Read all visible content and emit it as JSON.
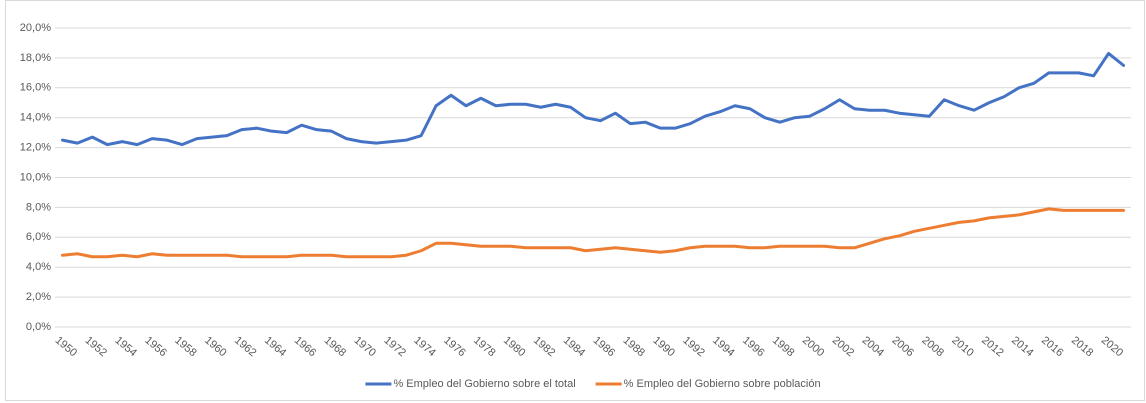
{
  "chart_data": {
    "type": "line",
    "categories": [
      "1950",
      null,
      "1952",
      null,
      "1954",
      null,
      "1956",
      null,
      "1958",
      null,
      "1960",
      null,
      "1962",
      null,
      "1964",
      null,
      "1966",
      null,
      "1968",
      null,
      "1970",
      null,
      "1972",
      null,
      "1974",
      null,
      "1976",
      null,
      "1978",
      null,
      "1980",
      null,
      "1982",
      null,
      "1984",
      null,
      "1986",
      null,
      "1988",
      null,
      "1990",
      null,
      "1992",
      null,
      "1994",
      null,
      "1996",
      null,
      "1998",
      null,
      "2000",
      null,
      "2002",
      null,
      "2004",
      null,
      "2006",
      null,
      "2008",
      null,
      "2010",
      null,
      "2012",
      null,
      "2014",
      null,
      "2016",
      null,
      "2018",
      null,
      "2020",
      null
    ],
    "series": [
      {
        "name": "% Empleo del Gobierno sobre el total",
        "color": "#4472c4",
        "values": [
          12.5,
          12.3,
          12.7,
          12.2,
          12.4,
          12.2,
          12.6,
          12.5,
          12.2,
          12.6,
          12.7,
          12.8,
          13.2,
          13.3,
          13.1,
          13.0,
          13.5,
          13.2,
          13.1,
          12.6,
          12.4,
          12.3,
          12.4,
          12.5,
          12.8,
          14.8,
          15.5,
          14.8,
          15.3,
          14.8,
          14.9,
          14.9,
          14.7,
          14.9,
          14.7,
          14.0,
          13.8,
          14.3,
          13.6,
          13.7,
          13.3,
          13.3,
          13.6,
          14.1,
          14.4,
          14.8,
          14.6,
          14.0,
          13.7,
          14.0,
          14.1,
          14.6,
          15.2,
          14.6,
          14.5,
          14.5,
          14.3,
          14.2,
          14.1,
          15.2,
          14.8,
          14.5,
          15.0,
          15.4,
          16.0,
          16.3,
          17.0,
          17.0,
          17.0,
          16.8,
          18.3,
          17.5
        ]
      },
      {
        "name": "% Empleo del Gobierno sobre población",
        "color": "#ed7d31",
        "values": [
          4.8,
          4.9,
          4.7,
          4.7,
          4.8,
          4.7,
          4.9,
          4.8,
          4.8,
          4.8,
          4.8,
          4.8,
          4.7,
          4.7,
          4.7,
          4.7,
          4.8,
          4.8,
          4.8,
          4.7,
          4.7,
          4.7,
          4.7,
          4.8,
          5.1,
          5.6,
          5.6,
          5.5,
          5.4,
          5.4,
          5.4,
          5.3,
          5.3,
          5.3,
          5.3,
          5.1,
          5.2,
          5.3,
          5.2,
          5.1,
          5.0,
          5.1,
          5.3,
          5.4,
          5.4,
          5.4,
          5.3,
          5.3,
          5.4,
          5.4,
          5.4,
          5.4,
          5.3,
          5.3,
          5.6,
          5.9,
          6.1,
          6.4,
          6.6,
          6.8,
          7.0,
          7.1,
          7.3,
          7.4,
          7.5,
          7.7,
          7.9,
          7.8,
          7.8,
          7.8,
          7.8,
          7.8
        ]
      }
    ],
    "ylim": [
      0,
      20
    ],
    "yticks": [
      {
        "value": 0,
        "label": "0,0%"
      },
      {
        "value": 2,
        "label": "2,0%"
      },
      {
        "value": 4,
        "label": "4,0%"
      },
      {
        "value": 6,
        "label": "6,0%"
      },
      {
        "value": 8,
        "label": "8,0%"
      },
      {
        "value": 10,
        "label": "10,0%"
      },
      {
        "value": 12,
        "label": "12,0%"
      },
      {
        "value": 14,
        "label": "14,0%"
      },
      {
        "value": 16,
        "label": "16,0%"
      },
      {
        "value": 18,
        "label": "18,0%"
      },
      {
        "value": 20,
        "label": "20,0%"
      }
    ],
    "grid": true,
    "legend": "bottom"
  }
}
